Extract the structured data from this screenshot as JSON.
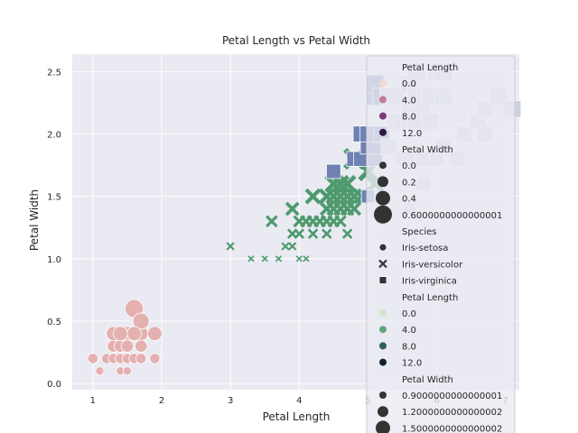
{
  "chart_data": {
    "type": "scatter",
    "title": "Petal Length vs Petal Width",
    "xlabel": "Petal Length",
    "ylabel": "Petal Width",
    "xlim": [
      0.7,
      7.2
    ],
    "ylim": [
      -0.05,
      2.64
    ],
    "xticks": [
      1,
      2,
      3,
      4,
      5,
      6,
      7
    ],
    "yticks": [
      "0.0",
      "0.5",
      "1.0",
      "1.5",
      "2.0",
      "2.5"
    ],
    "ytick_values": [
      0.0,
      0.5,
      1.0,
      1.5,
      2.0,
      2.5
    ],
    "grid": true,
    "background": "#eaeaf2",
    "legend_position": "upper right",
    "series": [
      {
        "name": "Iris-setosa",
        "marker": "circle",
        "color": "#e4b0b0",
        "points": [
          [
            1.0,
            0.2
          ],
          [
            1.1,
            0.1
          ],
          [
            1.2,
            0.2
          ],
          [
            1.3,
            0.2
          ],
          [
            1.3,
            0.3
          ],
          [
            1.3,
            0.4
          ],
          [
            1.4,
            0.1
          ],
          [
            1.4,
            0.2
          ],
          [
            1.4,
            0.3
          ],
          [
            1.5,
            0.1
          ],
          [
            1.5,
            0.2
          ],
          [
            1.5,
            0.4
          ],
          [
            1.6,
            0.2
          ],
          [
            1.6,
            0.6
          ],
          [
            1.7,
            0.2
          ],
          [
            1.7,
            0.4
          ],
          [
            1.7,
            0.5
          ],
          [
            1.7,
            0.3
          ],
          [
            1.9,
            0.2
          ],
          [
            1.9,
            0.4
          ],
          [
            1.6,
            0.4
          ],
          [
            1.5,
            0.3
          ],
          [
            1.4,
            0.4
          ]
        ]
      },
      {
        "name": "Iris-versicolor",
        "marker": "x",
        "color": "#4e9a6e",
        "points": [
          [
            3.0,
            1.1
          ],
          [
            3.3,
            1.0
          ],
          [
            3.5,
            1.0
          ],
          [
            3.7,
            1.0
          ],
          [
            3.8,
            1.1
          ],
          [
            3.9,
            1.1
          ],
          [
            3.9,
            1.2
          ],
          [
            3.6,
            1.3
          ],
          [
            3.9,
            1.4
          ],
          [
            4.0,
            1.0
          ],
          [
            4.1,
            1.0
          ],
          [
            4.0,
            1.2
          ],
          [
            4.0,
            1.3
          ],
          [
            4.1,
            1.3
          ],
          [
            4.2,
            1.2
          ],
          [
            4.2,
            1.3
          ],
          [
            4.2,
            1.5
          ],
          [
            4.3,
            1.3
          ],
          [
            4.4,
            1.2
          ],
          [
            4.4,
            1.3
          ],
          [
            4.4,
            1.4
          ],
          [
            4.5,
            1.3
          ],
          [
            4.5,
            1.5
          ],
          [
            4.5,
            1.6
          ],
          [
            4.6,
            1.3
          ],
          [
            4.6,
            1.4
          ],
          [
            4.6,
            1.5
          ],
          [
            4.7,
            1.2
          ],
          [
            4.7,
            1.4
          ],
          [
            4.7,
            1.5
          ],
          [
            4.7,
            1.6
          ],
          [
            4.8,
            1.4
          ],
          [
            4.8,
            1.8
          ],
          [
            4.9,
            1.5
          ],
          [
            5.0,
            1.7
          ],
          [
            5.1,
            1.6
          ],
          [
            4.5,
            1.4
          ],
          [
            4.4,
            1.5
          ],
          [
            4.8,
            1.5
          ],
          [
            4.6,
            1.6
          ]
        ]
      },
      {
        "name": "Iris-virginica",
        "marker": "square",
        "color": "#7a8ab8",
        "points": [
          [
            4.5,
            1.7
          ],
          [
            4.8,
            1.8
          ],
          [
            4.9,
            1.8
          ],
          [
            4.9,
            2.0
          ],
          [
            5.0,
            1.5
          ],
          [
            5.0,
            1.9
          ],
          [
            5.0,
            2.0
          ],
          [
            5.1,
            1.8
          ],
          [
            5.1,
            1.9
          ],
          [
            5.1,
            2.0
          ],
          [
            5.1,
            2.3
          ],
          [
            5.1,
            2.4
          ],
          [
            5.2,
            2.0
          ],
          [
            5.2,
            2.3
          ],
          [
            5.3,
            1.9
          ],
          [
            5.3,
            2.3
          ],
          [
            5.4,
            2.1
          ],
          [
            5.4,
            2.3
          ],
          [
            5.5,
            1.8
          ],
          [
            5.5,
            2.1
          ],
          [
            5.6,
            1.4
          ],
          [
            5.6,
            1.8
          ],
          [
            5.6,
            2.1
          ],
          [
            5.6,
            2.2
          ],
          [
            5.6,
            2.4
          ],
          [
            5.7,
            2.1
          ],
          [
            5.7,
            2.3
          ],
          [
            5.7,
            2.5
          ],
          [
            5.8,
            1.6
          ],
          [
            5.8,
            1.8
          ],
          [
            5.8,
            2.2
          ],
          [
            5.9,
            2.1
          ],
          [
            5.9,
            2.3
          ],
          [
            6.0,
            1.8
          ],
          [
            6.0,
            2.5
          ],
          [
            6.1,
            1.9
          ],
          [
            6.1,
            2.3
          ],
          [
            6.1,
            2.5
          ],
          [
            6.3,
            1.8
          ],
          [
            6.4,
            2.0
          ],
          [
            6.6,
            2.1
          ],
          [
            6.7,
            2.0
          ],
          [
            6.7,
            2.2
          ],
          [
            6.9,
            2.3
          ],
          [
            7.1,
            2.2
          ]
        ]
      }
    ],
    "legend": [
      {
        "kind": "title",
        "label": "Petal Length"
      },
      {
        "kind": "hue",
        "label": "0.0",
        "color": "#f5d9d3"
      },
      {
        "kind": "hue",
        "label": "4.0",
        "color": "#c5799a"
      },
      {
        "kind": "hue",
        "label": "8.0",
        "color": "#7e3a78"
      },
      {
        "kind": "hue",
        "label": "12.0",
        "color": "#2d1a40"
      },
      {
        "kind": "title",
        "label": "Petal Width"
      },
      {
        "kind": "size",
        "label": "0.0",
        "size": 4
      },
      {
        "kind": "size",
        "label": "0.2",
        "size": 6
      },
      {
        "kind": "size",
        "label": "0.4",
        "size": 8
      },
      {
        "kind": "size",
        "label": "0.6000000000000001",
        "size": 10
      },
      {
        "kind": "title",
        "label": "Species"
      },
      {
        "kind": "marker",
        "label": "Iris-setosa",
        "marker": "circle"
      },
      {
        "kind": "marker",
        "label": "Iris-versicolor",
        "marker": "x"
      },
      {
        "kind": "marker",
        "label": "Iris-virginica",
        "marker": "square"
      },
      {
        "kind": "title",
        "label": "Petal Length"
      },
      {
        "kind": "hue",
        "label": "0.0",
        "color": "#cfe6cc"
      },
      {
        "kind": "hue",
        "label": "4.0",
        "color": "#63a67c"
      },
      {
        "kind": "hue",
        "label": "8.0",
        "color": "#2a5f60"
      },
      {
        "kind": "hue",
        "label": "12.0",
        "color": "#0e2230"
      },
      {
        "kind": "title",
        "label": "Petal Width"
      },
      {
        "kind": "size",
        "label": "0.9000000000000001",
        "size": 4
      },
      {
        "kind": "size",
        "label": "1.2000000000000002",
        "size": 6
      },
      {
        "kind": "size",
        "label": "1.5000000000000002",
        "size": 8
      }
    ]
  }
}
